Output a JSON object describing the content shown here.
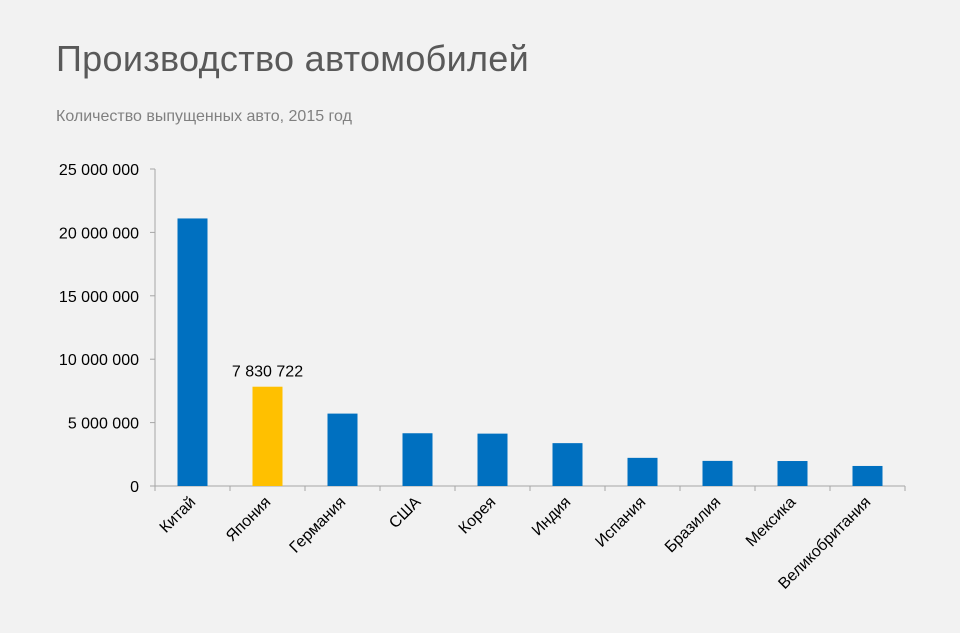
{
  "slide": {
    "title": "Производство автомобилей",
    "subtitle": "Количество выпущенных авто, 2015 год"
  },
  "colors": {
    "background": "#f2f2f2",
    "bar": "#0070c0",
    "highlight": "#ffc000",
    "axis": "#a6a6a6",
    "text": "#000000"
  },
  "chart_data": {
    "type": "bar",
    "title": "",
    "xlabel": "",
    "ylabel": "",
    "ylim": [
      0,
      25000000
    ],
    "yticks": [
      0,
      5000000,
      10000000,
      15000000,
      20000000,
      25000000
    ],
    "ytick_labels": [
      "0",
      "5 000 000",
      "10 000 000",
      "15 000 000",
      "20 000 000",
      "25 000 000"
    ],
    "grid": false,
    "legend": "none",
    "categories": [
      "Китай",
      "Япония",
      "Германия",
      "США",
      "Корея",
      "Индия",
      "Испания",
      "Бразилия",
      "Мексика",
      "Великобритания"
    ],
    "values": [
      21100000,
      7830722,
      5710000,
      4160000,
      4130000,
      3380000,
      2220000,
      1980000,
      1970000,
      1580000
    ],
    "highlight_index": 1,
    "data_labels": [
      {
        "index": 1,
        "text": "7 830 722"
      }
    ]
  }
}
